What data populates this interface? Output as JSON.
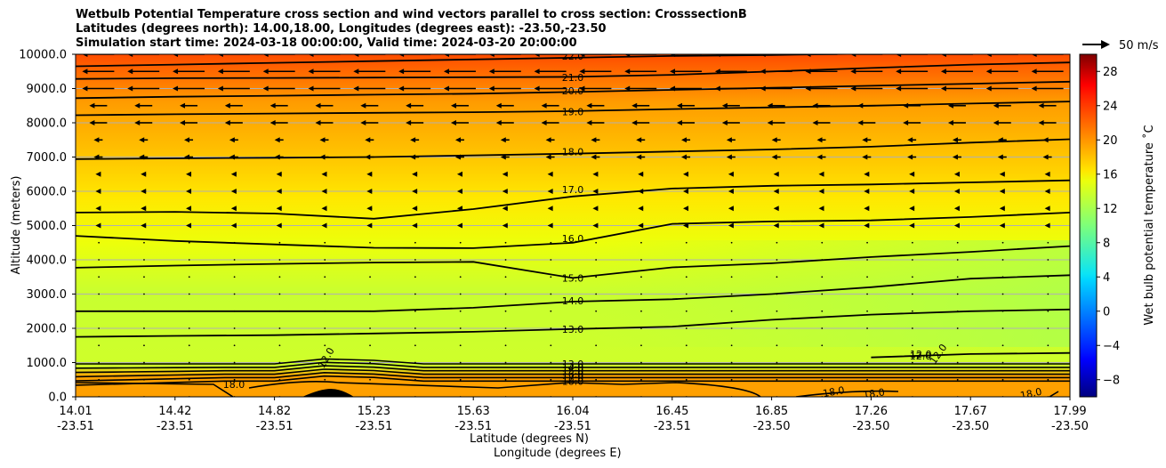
{
  "chart_data": {
    "type": "contour",
    "title_lines": [
      "Wetbulb Potential Temperature cross section and wind vectors parallel to cross section: CrosssectionB",
      "Latitudes (degrees north): 14.00,18.00, Longitudes (degrees east): -23.50,-23.50",
      "Simulation start time: 2024-03-18 00:00:00, Valid time: 2024-03-20 20:00:00"
    ],
    "xlabel_lat": "Latitude (degrees N)",
    "xlabel_lon": "Longitude (degrees E)",
    "ylabel": "Altitude (meters)",
    "x_ticks": [
      {
        "lat": "14.01",
        "lon": "-23.51"
      },
      {
        "lat": "14.42",
        "lon": "-23.51"
      },
      {
        "lat": "14.82",
        "lon": "-23.51"
      },
      {
        "lat": "15.23",
        "lon": "-23.51"
      },
      {
        "lat": "15.63",
        "lon": "-23.51"
      },
      {
        "lat": "16.04",
        "lon": "-23.51"
      },
      {
        "lat": "16.45",
        "lon": "-23.51"
      },
      {
        "lat": "16.85",
        "lon": "-23.50"
      },
      {
        "lat": "17.26",
        "lon": "-23.50"
      },
      {
        "lat": "17.67",
        "lon": "-23.50"
      },
      {
        "lat": "17.99",
        "lon": "-23.50"
      }
    ],
    "y_ticks": [
      "0.0",
      "1000.0",
      "2000.0",
      "3000.0",
      "4000.0",
      "5000.0",
      "6000.0",
      "7000.0",
      "8000.0",
      "9000.0",
      "10000.0"
    ],
    "ylim": [
      0,
      10000
    ],
    "grid": "horizontal",
    "colorbar": {
      "label": "Wet bulb potential temperature ˚C",
      "range": [
        -10,
        30
      ],
      "ticks": [
        "−8",
        "−4",
        "0",
        "4",
        "8",
        "12",
        "16",
        "20",
        "24",
        "28"
      ],
      "colormap": "jet"
    },
    "quiver_key": "50 m/s",
    "contours": [
      {
        "label": "22.0",
        "label_pos": [
          0.5,
          9950
        ],
        "y": [
          9650,
          9700,
          9750,
          9800,
          9850,
          9900,
          9950,
          9980,
          10020,
          10060,
          10100
        ]
      },
      {
        "label": "21.0",
        "label_pos": [
          0.5,
          9330
        ],
        "y": [
          9280,
          9300,
          9310,
          9320,
          9330,
          9340,
          9400,
          9500,
          9600,
          9700,
          9760
        ]
      },
      {
        "label": "20.0",
        "label_pos": [
          0.5,
          8930
        ],
        "y": [
          8720,
          8760,
          8790,
          8820,
          8850,
          8900,
          8960,
          9020,
          9080,
          9140,
          9200
        ]
      },
      {
        "label": "19.0",
        "label_pos": [
          0.5,
          8330
        ],
        "y": [
          8220,
          8250,
          8270,
          8290,
          8310,
          8340,
          8400,
          8450,
          8500,
          8560,
          8620
        ]
      },
      {
        "label": "18.0",
        "label_pos": [
          0.5,
          7150
        ],
        "y": [
          6940,
          6960,
          6980,
          7000,
          7050,
          7100,
          7160,
          7220,
          7300,
          7420,
          7520
        ]
      },
      {
        "label": "17.0",
        "label_pos": [
          0.5,
          6050
        ],
        "y": [
          5380,
          5400,
          5350,
          5200,
          5480,
          5850,
          6080,
          6160,
          6200,
          6260,
          6320
        ]
      },
      {
        "label": "16.0",
        "label_pos": [
          0.5,
          4620
        ],
        "y": [
          4700,
          4550,
          4450,
          4350,
          4340,
          4500,
          5050,
          5120,
          5150,
          5250,
          5380
        ]
      },
      {
        "label": "15.0",
        "label_pos": [
          0.5,
          3470
        ],
        "y": [
          3770,
          3830,
          3880,
          3920,
          3940,
          3470,
          3780,
          3900,
          4080,
          4230,
          4400
        ]
      },
      {
        "label": "14.0",
        "label_pos": [
          0.5,
          2800
        ],
        "y": [
          2500,
          2500,
          2500,
          2500,
          2600,
          2780,
          2850,
          3000,
          3200,
          3450,
          3550
        ]
      },
      {
        "label": "13.0",
        "label_pos": [
          0.5,
          1980
        ],
        "y": [
          1750,
          1780,
          1800,
          1850,
          1900,
          1980,
          2050,
          2250,
          2400,
          2500,
          2550
        ]
      },
      {
        "label": "12.0",
        "label_pos": [
          0.85,
          1250
        ],
        "y": [
          null,
          null,
          null,
          null,
          null,
          null,
          null,
          null,
          1150,
          1250,
          1280
        ]
      }
    ],
    "near_surface_contours": [
      "13.0",
      "14.0",
      "15.0",
      "16.0",
      "17.0",
      "18.0"
    ],
    "annotations": [
      "18.0",
      "18.0",
      "18.0",
      "18.0",
      "12.0",
      "12.0",
      "12.0"
    ]
  }
}
